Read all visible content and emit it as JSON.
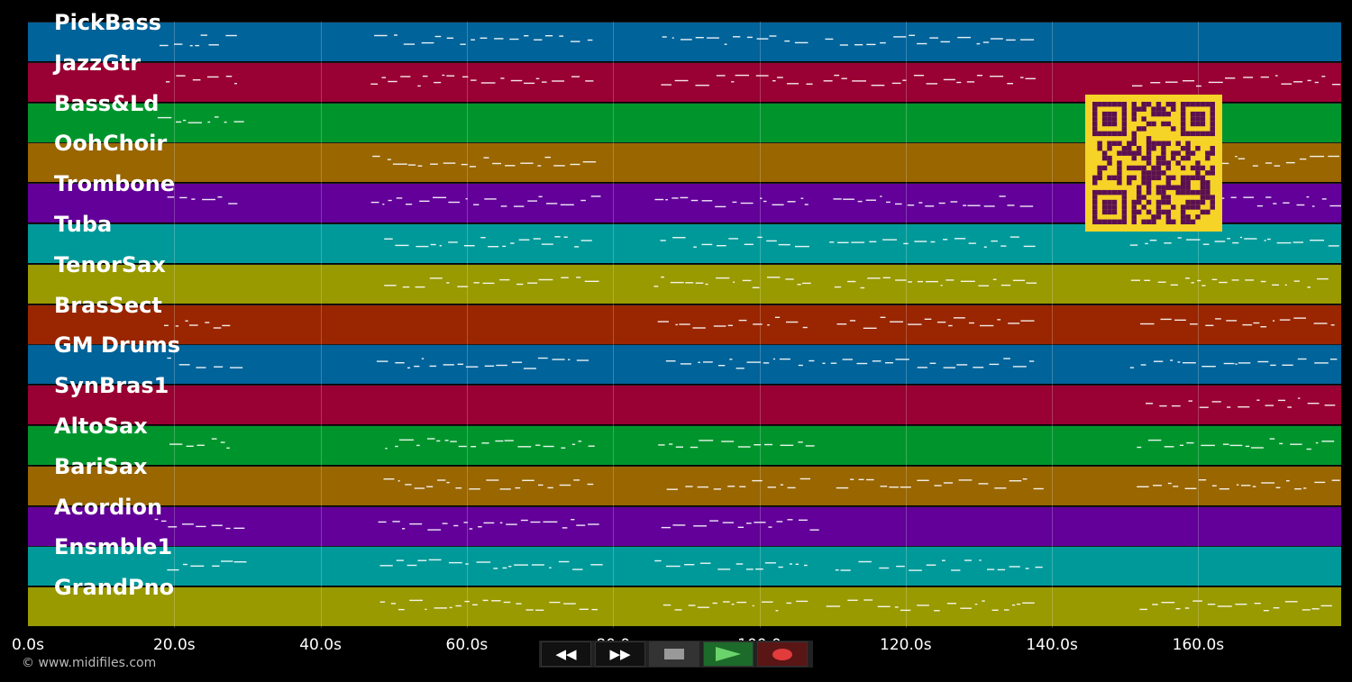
{
  "tracks": [
    {
      "name": "PickBass",
      "color": "#00639a"
    },
    {
      "name": "JazzGtr",
      "color": "#990033"
    },
    {
      "name": "Bass&Ld",
      "color": "#00952c"
    },
    {
      "name": "OohChoir",
      "color": "#996600"
    },
    {
      "name": "Trombone",
      "color": "#620099"
    },
    {
      "name": "Tuba",
      "color": "#009999"
    },
    {
      "name": "TenorSax",
      "color": "#999900"
    },
    {
      "name": "BrasSect",
      "color": "#992600"
    },
    {
      "name": "GM Drums",
      "color": "#00639a"
    },
    {
      "name": "SynBras1",
      "color": "#990033"
    },
    {
      "name": "AltoSax",
      "color": "#00952c"
    },
    {
      "name": "BariSax",
      "color": "#996600"
    },
    {
      "name": "Acordion",
      "color": "#620099"
    },
    {
      "name": "Ensmble1",
      "color": "#009999"
    },
    {
      "name": "GrandPno",
      "color": "#999900"
    }
  ],
  "time_axis": {
    "ticks": [
      "0.0s",
      "20.0s",
      "40.0s",
      "60.0s",
      "80.0",
      "100.0",
      "120.0s",
      "140.0s",
      "160.0s"
    ]
  },
  "copyright": "© www.midifiles.com",
  "transport": {
    "buttons": [
      {
        "name": "rewind-button",
        "icon": "rewind-icon",
        "glyph": "◀◀"
      },
      {
        "name": "fast-forward-button",
        "icon": "fast-forward-icon",
        "glyph": "▶▶"
      },
      {
        "name": "stop-button",
        "icon": "stop-icon",
        "glyph": "■"
      },
      {
        "name": "play-button",
        "icon": "play-icon",
        "glyph": "▶"
      },
      {
        "name": "record-button",
        "icon": "record-icon",
        "glyph": "●"
      }
    ]
  },
  "qr_code": {
    "icon": "qr-code-icon",
    "color": "#f5d327"
  }
}
